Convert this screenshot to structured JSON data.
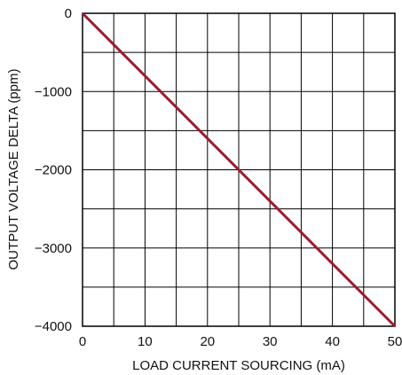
{
  "chart_data": {
    "type": "line",
    "title": "",
    "xlabel": "LOAD CURRENT SOURCING (mA)",
    "ylabel": "OUTPUT VOLTAGE DELTA (ppm)",
    "xlim": [
      0,
      50
    ],
    "ylim": [
      -4000,
      0
    ],
    "x_ticks": [
      0,
      10,
      20,
      30,
      40,
      50
    ],
    "y_ticks": [
      0,
      -1000,
      -2000,
      -3000,
      -4000
    ],
    "x_tick_labels": [
      "0",
      "10",
      "20",
      "30",
      "40",
      "50"
    ],
    "y_tick_labels": [
      "0",
      "−1000",
      "−2000",
      "−3000",
      "−4000"
    ],
    "grid": true,
    "grid_x_step": 5,
    "grid_y_step": 500,
    "series": [
      {
        "x": [
          0,
          50
        ],
        "y": [
          0,
          -4000
        ],
        "color": "#9b1b30"
      }
    ]
  }
}
